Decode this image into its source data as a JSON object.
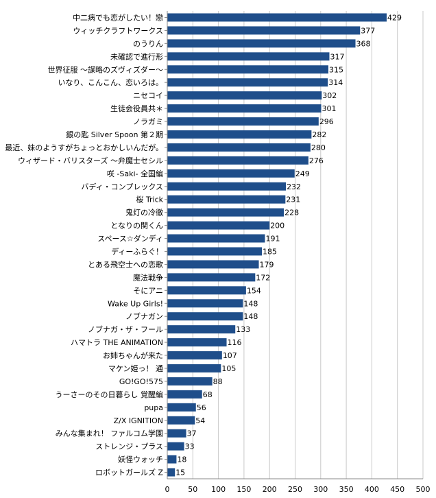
{
  "chart_data": {
    "type": "bar",
    "orientation": "horizontal",
    "categories": [
      "中二病でも恋がしたい！戀",
      "ウィッチクラフトワークス",
      "のうりん",
      "未確認で進行形",
      "世界征服 ～謀略のズヴィズダー～",
      "いなり、こんこん、恋いろは。",
      "ニセコイ",
      "生徒会役員共＊",
      "ノラガミ",
      "銀の匙 Silver Spoon 第２期",
      "最近、妹のようすがちょっとおかしいんだが。",
      "ウィザード・バリスターズ ～弁魔士セシル",
      "咲 -Saki- 全国編",
      "バディ・コンプレックス",
      "桜 Trick",
      "鬼灯の冷徹",
      "となりの関くん",
      "スペース☆ダンディ",
      "ディーふらぐ！",
      "とある飛空士への恋歌",
      "魔法戦争",
      "そにアニ",
      "Wake Up Girls!",
      "ノブナガン",
      "ノブナガ・ザ・フール",
      "ハマトラ THE ANIMATION",
      "お姉ちゃんが来た",
      "マケン姫っ！ 通",
      "GO!GO!575",
      "うーさーのその日暮らし 覚醒編",
      "pupa",
      "Z/X IGNITION",
      "みんな集まれ！ ファルコム学園",
      "ストレンジ・プラス",
      "妖怪ウォッチ",
      "ロボットガールズ Z"
    ],
    "values": [
      429,
      377,
      368,
      317,
      315,
      314,
      302,
      301,
      296,
      282,
      280,
      276,
      249,
      232,
      231,
      228,
      200,
      191,
      185,
      179,
      172,
      154,
      148,
      148,
      133,
      116,
      107,
      105,
      88,
      68,
      56,
      54,
      37,
      33,
      18,
      15
    ],
    "xlim": [
      0,
      500
    ],
    "xticks": [
      "0",
      "50",
      "100",
      "150",
      "200",
      "250",
      "300",
      "350",
      "400",
      "450",
      "500"
    ],
    "grid": "vertical",
    "legend": "none",
    "colors": {
      "bar": "#1f4e8a",
      "grid": "#c8c8c8",
      "axis": "#888888"
    }
  }
}
